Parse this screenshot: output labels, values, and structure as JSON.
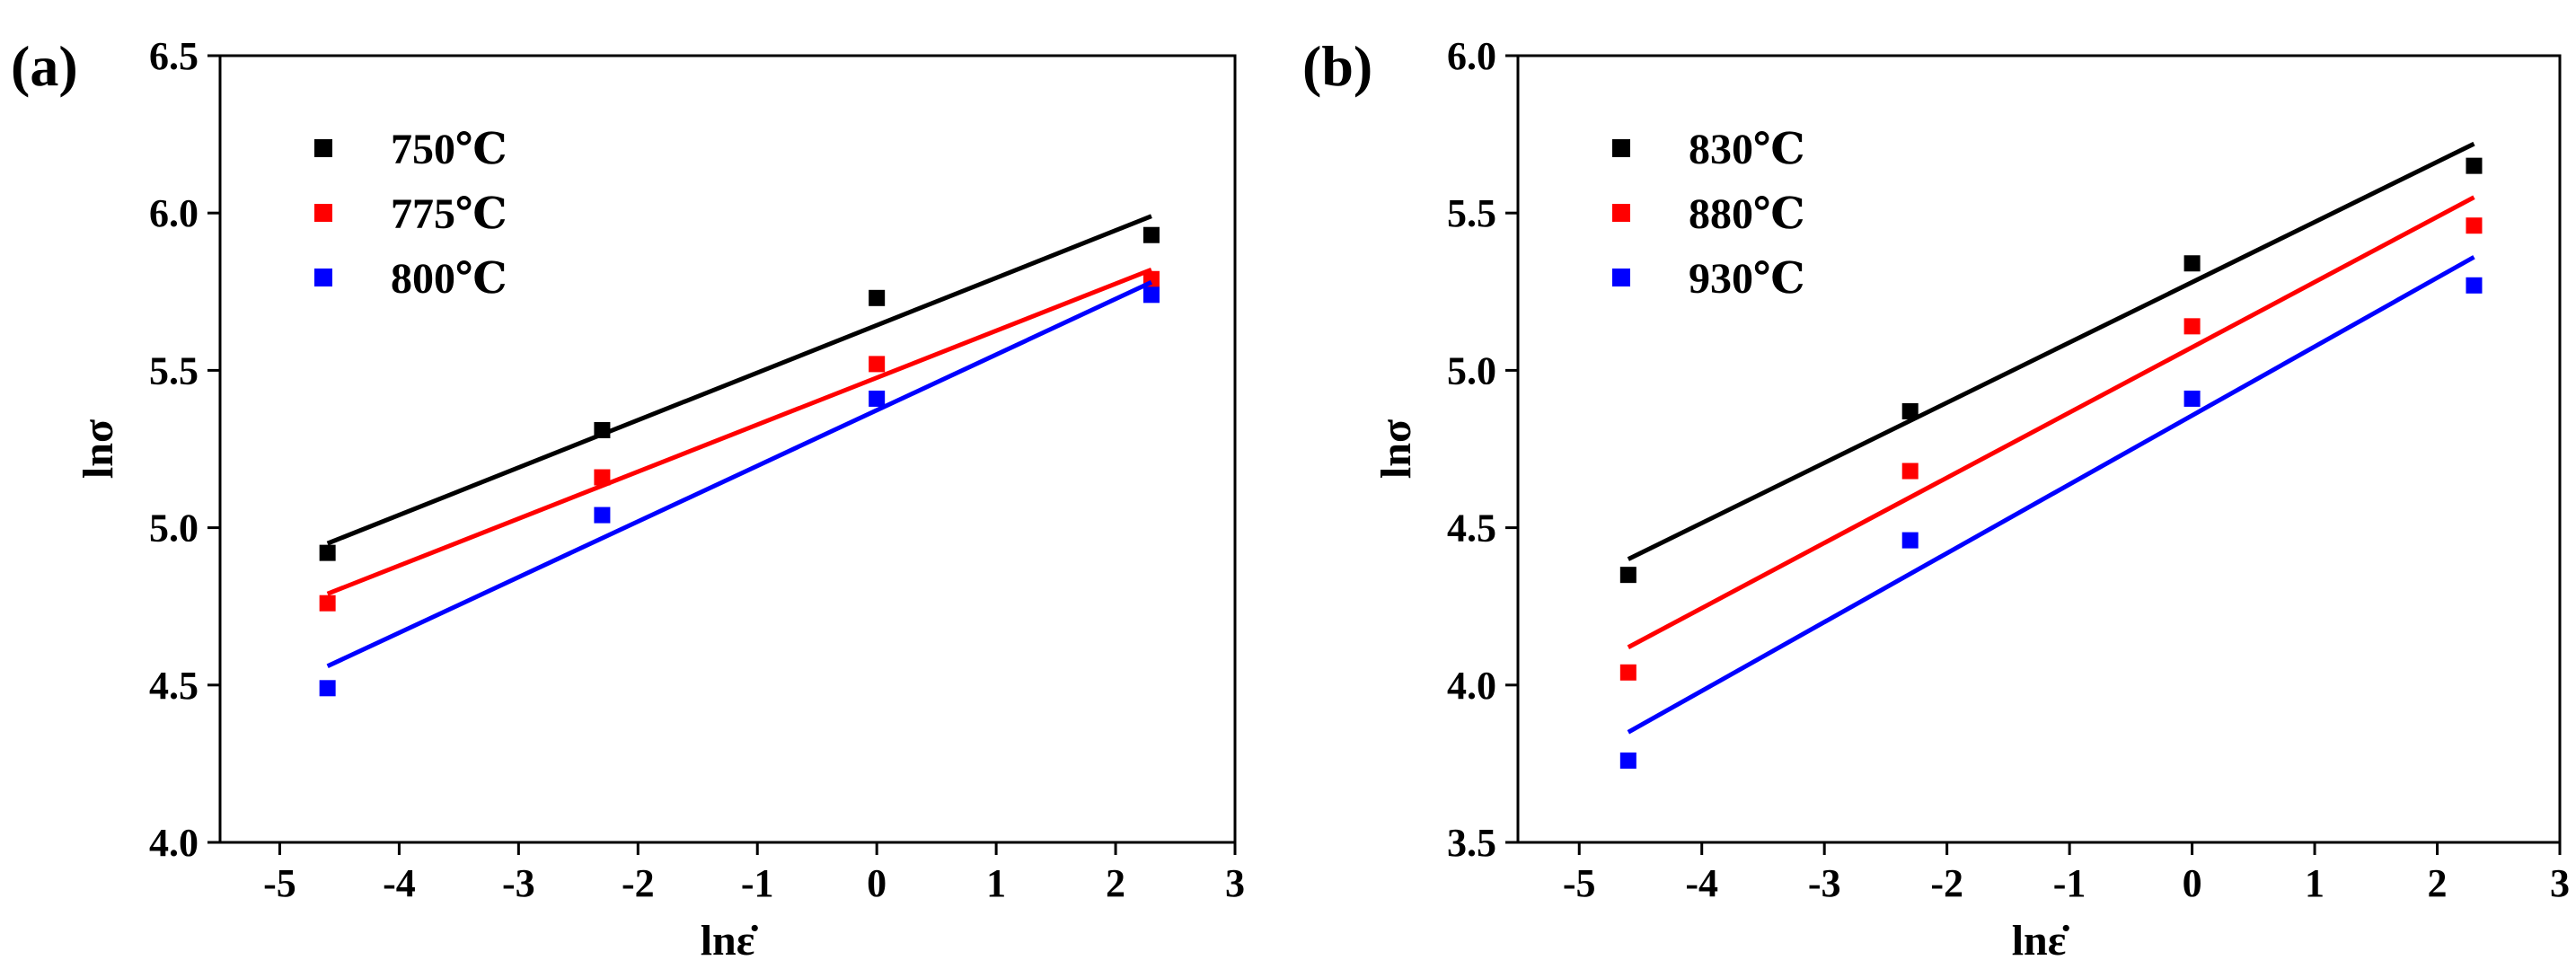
{
  "chart_data": [
    {
      "type": "scatter",
      "panel_label": "(a)",
      "title": "",
      "xlabel": "lnε̇",
      "ylabel": "lnσ",
      "xlim": [
        -5.5,
        3
      ],
      "ylim": [
        4.0,
        6.5
      ],
      "xticks": [
        -5,
        -4,
        -3,
        -2,
        -1,
        0,
        1,
        2,
        3
      ],
      "xtick_labels": [
        "-5",
        "-4",
        "-3",
        "-2",
        "-1",
        "0",
        "1",
        "2",
        "3"
      ],
      "yticks": [
        4.0,
        4.5,
        5.0,
        5.5,
        6.0,
        6.5
      ],
      "ytick_labels": [
        "4.0",
        "4.5",
        "5.0",
        "5.5",
        "6.0",
        "6.5"
      ],
      "legend_position": "top-left",
      "x": [
        -4.6,
        -2.3,
        0,
        2.3
      ],
      "series": [
        {
          "name": "750℃",
          "color": "#000000",
          "values": [
            4.92,
            5.31,
            5.73,
            5.93
          ],
          "fit": {
            "x": [
              -4.6,
              2.3
            ],
            "y": [
              4.95,
              5.99
            ]
          }
        },
        {
          "name": "775℃",
          "color": "#ff0000",
          "values": [
            4.76,
            5.16,
            5.52,
            5.79
          ],
          "fit": {
            "x": [
              -4.6,
              2.3
            ],
            "y": [
              4.79,
              5.82
            ]
          }
        },
        {
          "name": "800℃",
          "color": "#0000ff",
          "values": [
            4.49,
            5.04,
            5.41,
            5.74
          ],
          "fit": {
            "x": [
              -4.6,
              2.3
            ],
            "y": [
              4.56,
              5.78
            ]
          }
        }
      ]
    },
    {
      "type": "scatter",
      "panel_label": "(b)",
      "title": "",
      "xlabel": "lnε̇",
      "ylabel": "lnσ",
      "xlim": [
        -5.5,
        3
      ],
      "ylim": [
        3.5,
        6.0
      ],
      "xticks": [
        -5,
        -4,
        -3,
        -2,
        -1,
        0,
        1,
        2,
        3
      ],
      "xtick_labels": [
        "-5",
        "-4",
        "-3",
        "-2",
        "-1",
        "0",
        "1",
        "2",
        "3"
      ],
      "yticks": [
        3.5,
        4.0,
        4.5,
        5.0,
        5.5,
        6.0
      ],
      "ytick_labels": [
        "3.5",
        "4.0",
        "4.5",
        "5.0",
        "5.5",
        "6.0"
      ],
      "legend_position": "top-left",
      "x": [
        -4.6,
        -2.3,
        0,
        2.3
      ],
      "series": [
        {
          "name": "830℃",
          "color": "#000000",
          "values": [
            4.35,
            4.87,
            5.34,
            5.65
          ],
          "fit": {
            "x": [
              -4.6,
              2.3
            ],
            "y": [
              4.4,
              5.72
            ]
          }
        },
        {
          "name": "880℃",
          "color": "#ff0000",
          "values": [
            4.04,
            4.68,
            5.14,
            5.46
          ],
          "fit": {
            "x": [
              -4.6,
              2.3
            ],
            "y": [
              4.12,
              5.55
            ]
          }
        },
        {
          "name": "930℃",
          "color": "#0000ff",
          "values": [
            3.76,
            4.46,
            4.91,
            5.27
          ],
          "fit": {
            "x": [
              -4.6,
              2.3
            ],
            "y": [
              3.85,
              5.36
            ]
          }
        }
      ]
    }
  ]
}
